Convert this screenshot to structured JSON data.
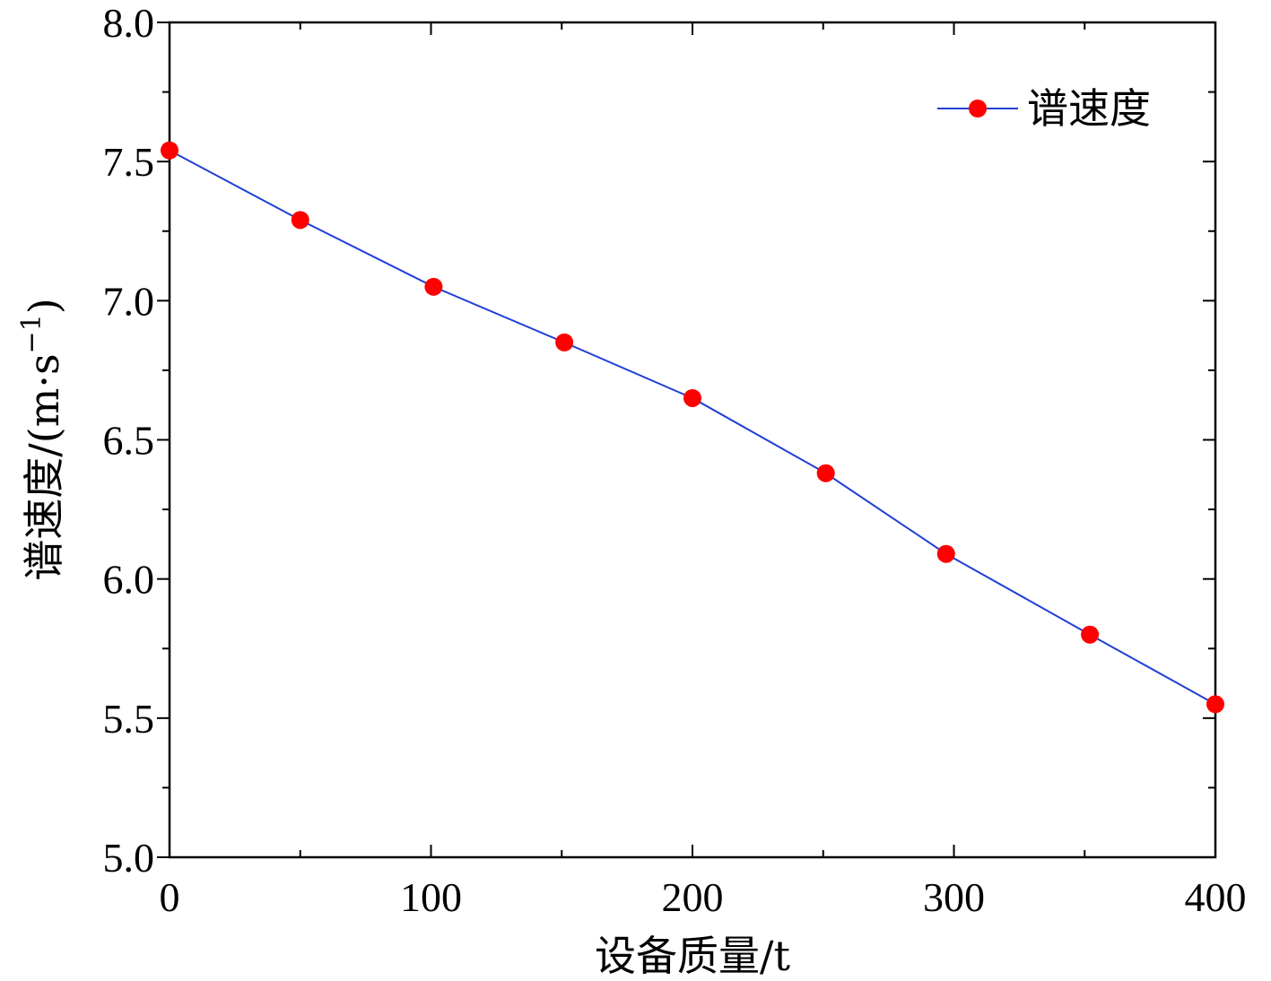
{
  "chart_data": {
    "type": "line",
    "title": "",
    "xlabel": "设备质量/t",
    "ylabel": "谱速度/(m·s",
    "ylabel_sup": "−1",
    "ylabel_close": ")",
    "xlim": [
      0,
      400
    ],
    "ylim": [
      5.0,
      8.0
    ],
    "xticks": [
      0,
      100,
      200,
      300,
      400
    ],
    "xtick_labels": [
      "0",
      "100",
      "200",
      "300",
      "400"
    ],
    "yticks": [
      5.0,
      5.5,
      6.0,
      6.5,
      7.0,
      7.5,
      8.0
    ],
    "ytick_labels": [
      "5.0",
      "5.5",
      "6.0",
      "6.5",
      "7.0",
      "7.5",
      "8.0"
    ],
    "grid": false,
    "legend_position": "top-right",
    "series": [
      {
        "name": "谱速度",
        "line_color": "#1f3fd6",
        "marker_color": "#ff0000",
        "x": [
          0,
          50,
          101,
          151,
          200,
          251,
          297,
          352,
          400
        ],
        "y": [
          7.54,
          7.29,
          7.05,
          6.85,
          6.65,
          6.38,
          6.09,
          5.8,
          5.55
        ]
      }
    ]
  }
}
